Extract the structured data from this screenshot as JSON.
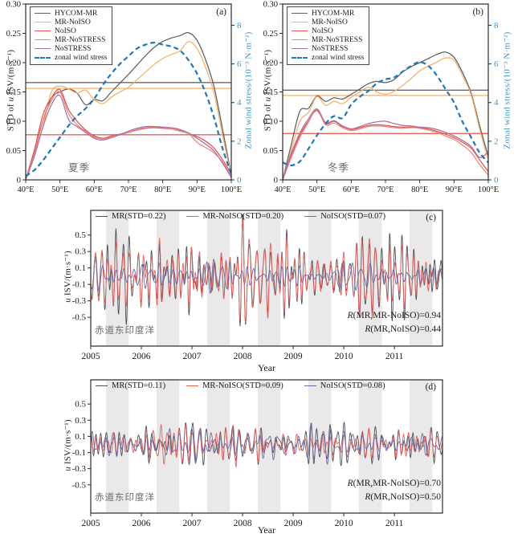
{
  "panels": {
    "a": {
      "tag": "(a)",
      "season": "夏季",
      "ylabel_pre": "STD of ",
      "ylabel_var": "u",
      "ylabel_post": " ISV/(m·s⁻¹)",
      "ylabel_right": "Zonal wind stress/(10⁻³ N·m⁻²)"
    },
    "b": {
      "tag": "(b)",
      "season": "冬季",
      "ylabel_pre": "STD of ",
      "ylabel_var": "u",
      "ylabel_post": " ISV/(m·s⁻¹)",
      "ylabel_right": "Zonal wind stress/(10⁻³ N·m⁻²)"
    },
    "c": {
      "tag": "(c)",
      "region": "赤道东印度洋",
      "ylabel_pre": "",
      "ylabel_var": "u",
      "ylabel_post": " ISV/(m·s⁻¹)",
      "xlabel": "Year"
    },
    "d": {
      "tag": "(d)",
      "region": "赤道东印度洋",
      "ylabel_pre": "",
      "ylabel_var": "u",
      "ylabel_post": " ISV/(m·s⁻¹)",
      "xlabel": "Year"
    }
  },
  "colors": {
    "frame": "#2b2b2b",
    "right_axis_blue": "#3d96c7",
    "wind_blue": "#1f77b4",
    "band_gray": "#eae8e8"
  },
  "chart_data": [
    {
      "id": "a",
      "type": "line",
      "panel": "(a)",
      "season_label": "夏季",
      "x_axis": {
        "label": "",
        "range": [
          40,
          100
        ],
        "ticks": [
          40,
          50,
          60,
          70,
          80,
          90,
          100
        ],
        "tick_labels": [
          "40°E",
          "50°E",
          "60°E",
          "70°E",
          "80°E",
          "90°E",
          "100°E"
        ]
      },
      "y_axis": {
        "label": "STD of u ISV/(m·s⁻¹)",
        "range": [
          0,
          0.3
        ],
        "ticks": [
          0,
          0.05,
          0.1,
          0.15,
          0.2,
          0.25,
          0.3
        ],
        "tick_labels": [
          "0",
          "0.05",
          "0.10",
          "0.15",
          "0.20",
          "0.25",
          "0.30"
        ]
      },
      "y2_axis": {
        "label": "Zonal wind stress/(10⁻³ N·m⁻²)",
        "range": [
          0,
          9.1
        ],
        "ticks": [
          0,
          2,
          4,
          6,
          8
        ],
        "tick_labels": [
          "0",
          "2",
          "4",
          "6",
          "8"
        ]
      },
      "x": [
        40,
        42.5,
        45,
        47.5,
        50,
        52.5,
        55,
        57.5,
        60,
        62.5,
        65,
        67.5,
        70,
        72.5,
        75,
        77.5,
        80,
        82.5,
        85,
        87.5,
        90,
        92.5,
        95,
        97.5,
        100
      ],
      "series": [
        {
          "name": "HYCOM-MR",
          "color": "#5f5f63",
          "values": [
            0.0,
            0.05,
            0.1,
            0.14,
            0.15,
            0.155,
            0.148,
            0.128,
            0.137,
            0.135,
            0.15,
            0.165,
            0.18,
            0.196,
            0.212,
            0.226,
            0.236,
            0.242,
            0.246,
            0.251,
            0.238,
            0.205,
            0.158,
            0.085,
            0.008
          ]
        },
        {
          "name": "MR-NoISO",
          "color": "#f2b06a",
          "values": [
            0.0,
            0.04,
            0.09,
            0.15,
            0.16,
            0.155,
            0.148,
            0.153,
            0.137,
            0.13,
            0.141,
            0.15,
            0.158,
            0.171,
            0.184,
            0.197,
            0.207,
            0.214,
            0.22,
            0.236,
            0.224,
            0.192,
            0.147,
            0.075,
            0.006
          ]
        },
        {
          "name": "NoISO",
          "color": "#e5534a",
          "values": [
            0.0,
            0.05,
            0.11,
            0.14,
            0.154,
            0.12,
            0.1,
            0.085,
            0.075,
            0.071,
            0.075,
            0.078,
            0.081,
            0.085,
            0.088,
            0.089,
            0.088,
            0.087,
            0.084,
            0.079,
            0.074,
            0.066,
            0.054,
            0.034,
            0.01
          ]
        },
        {
          "name": "MR-NoSTRESS",
          "color": "#e8857c",
          "values": [
            0.0,
            0.045,
            0.1,
            0.135,
            0.15,
            0.113,
            0.094,
            0.083,
            0.073,
            0.07,
            0.073,
            0.077,
            0.081,
            0.086,
            0.089,
            0.09,
            0.089,
            0.087,
            0.083,
            0.079,
            0.064,
            0.055,
            0.046,
            0.03,
            0.006
          ]
        },
        {
          "name": "NoSTRESS",
          "color": "#aa6fa4",
          "values": [
            0.0,
            0.04,
            0.09,
            0.128,
            0.144,
            0.103,
            0.091,
            0.081,
            0.071,
            0.068,
            0.072,
            0.077,
            0.083,
            0.088,
            0.091,
            0.091,
            0.09,
            0.089,
            0.086,
            0.08,
            0.071,
            0.061,
            0.049,
            0.028,
            0.004
          ]
        }
      ],
      "wind_series": {
        "name": "zonal wind stress",
        "axis": "y2",
        "color": "#1f77b4",
        "dashed": true,
        "values": [
          0.2,
          0.5,
          1.0,
          1.6,
          2.2,
          2.8,
          3.3,
          3.7,
          4.2,
          4.9,
          5.5,
          6.0,
          6.4,
          6.8,
          7.0,
          7.1,
          7.0,
          6.9,
          6.7,
          6.2,
          5.5,
          4.5,
          3.2,
          1.6,
          0.3
        ]
      },
      "mean_lines": [
        {
          "value": 0.166,
          "color": "#6a6a6a"
        },
        {
          "value": 0.156,
          "color": "#f2b06a"
        },
        {
          "value": 0.077,
          "color": "#e4635a"
        }
      ]
    },
    {
      "id": "b",
      "type": "line",
      "panel": "(b)",
      "season_label": "冬季",
      "x_axis": {
        "label": "",
        "range": [
          40,
          100
        ],
        "ticks": [
          40,
          50,
          60,
          70,
          80,
          90,
          100
        ],
        "tick_labels": [
          "40°E",
          "50°E",
          "60°E",
          "70°E",
          "80°E",
          "90°E",
          "100°E"
        ]
      },
      "y_axis": {
        "label": "STD of u ISV/(m·s⁻¹)",
        "range": [
          0,
          0.3
        ],
        "ticks": [
          0,
          0.05,
          0.1,
          0.15,
          0.2,
          0.25,
          0.3
        ],
        "tick_labels": [
          "0",
          "0.05",
          "0.10",
          "0.15",
          "0.20",
          "0.25",
          "0.30"
        ]
      },
      "y2_axis": {
        "label": "Zonal wind stress/(10⁻³ N·m⁻²)",
        "range": [
          0,
          9.1
        ],
        "ticks": [
          0,
          2,
          4,
          6,
          8
        ],
        "tick_labels": [
          "0",
          "2",
          "4",
          "6",
          "8"
        ]
      },
      "x": [
        40,
        42.5,
        45,
        47.5,
        50,
        52.5,
        55,
        57.5,
        60,
        62.5,
        65,
        67.5,
        70,
        72.5,
        75,
        77.5,
        80,
        82.5,
        85,
        87.5,
        90,
        92.5,
        95,
        97.5,
        100
      ],
      "series": [
        {
          "name": "HYCOM-MR",
          "color": "#5f5f63",
          "values": [
            0.0,
            0.06,
            0.117,
            0.122,
            0.143,
            0.134,
            0.14,
            0.138,
            0.146,
            0.155,
            0.164,
            0.168,
            0.166,
            0.171,
            0.184,
            0.193,
            0.2,
            0.207,
            0.214,
            0.218,
            0.209,
            0.183,
            0.148,
            0.092,
            0.04
          ]
        },
        {
          "name": "MR-NoISO",
          "color": "#f2b06a",
          "values": [
            0.0,
            0.05,
            0.1,
            0.115,
            0.142,
            0.127,
            0.134,
            0.13,
            0.141,
            0.15,
            0.158,
            0.15,
            0.146,
            0.151,
            0.161,
            0.173,
            0.186,
            0.194,
            0.201,
            0.208,
            0.204,
            0.178,
            0.145,
            0.086,
            0.034
          ]
        },
        {
          "name": "NoISO",
          "color": "#e5534a",
          "values": [
            0.0,
            0.04,
            0.076,
            0.1,
            0.118,
            0.096,
            0.1,
            0.091,
            0.086,
            0.089,
            0.093,
            0.094,
            0.093,
            0.091,
            0.09,
            0.09,
            0.089,
            0.087,
            0.083,
            0.078,
            0.072,
            0.064,
            0.054,
            0.034,
            0.014
          ]
        },
        {
          "name": "MR-NoSTRESS",
          "color": "#e8857c",
          "values": [
            0.0,
            0.038,
            0.072,
            0.098,
            0.12,
            0.094,
            0.097,
            0.089,
            0.084,
            0.087,
            0.091,
            0.092,
            0.091,
            0.089,
            0.088,
            0.089,
            0.088,
            0.085,
            0.081,
            0.075,
            0.069,
            0.059,
            0.047,
            0.026,
            0.008
          ]
        },
        {
          "name": "NoSTRESS",
          "color": "#aa6fa4",
          "values": [
            0.0,
            0.045,
            0.08,
            0.104,
            0.121,
            0.098,
            0.101,
            0.092,
            0.087,
            0.091,
            0.096,
            0.099,
            0.1,
            0.096,
            0.093,
            0.092,
            0.09,
            0.089,
            0.086,
            0.081,
            0.075,
            0.067,
            0.057,
            0.038,
            0.048
          ]
        }
      ],
      "wind_series": {
        "name": "zonal wind stress",
        "axis": "y2",
        "color": "#1f77b4",
        "dashed": true,
        "values": [
          0.9,
          0.75,
          0.95,
          1.6,
          2.3,
          2.9,
          3.3,
          3.2,
          3.9,
          4.3,
          4.6,
          5.0,
          5.2,
          5.3,
          5.6,
          5.9,
          6.1,
          5.9,
          5.4,
          4.7,
          4.0,
          3.0,
          2.2,
          1.4,
          0.9
        ]
      },
      "mean_lines": [
        {
          "value": 0.153,
          "color": "#6a6a6a"
        },
        {
          "value": 0.144,
          "color": "#f2b06a"
        },
        {
          "value": 0.079,
          "color": "#e4635a"
        }
      ]
    },
    {
      "id": "c",
      "type": "line",
      "panel": "(c)",
      "region_label": "赤道东印度洋",
      "x_axis": {
        "label": "Year",
        "range": [
          2005,
          2011.95
        ],
        "ticks": [
          2005,
          2006,
          2007,
          2008,
          2009,
          2010,
          2011
        ],
        "tick_labels": [
          "2005",
          "2006",
          "2007",
          "2008",
          "2009",
          "2010",
          "2011"
        ]
      },
      "y_axis": {
        "label": "u ISV/(m·s⁻¹)",
        "range": [
          -0.85,
          0.8
        ],
        "ticks": [
          0.5,
          0.3,
          0.1,
          -0.1,
          -0.3,
          -0.5
        ],
        "tick_labels": [
          "0.5",
          "0.3",
          "0.1",
          "-0.1",
          "-0.3",
          "-0.5"
        ]
      },
      "shaded_bands": {
        "color": "#eae8e8",
        "year_start_frac": 0.3,
        "year_end_frac": 0.75,
        "years": [
          2005,
          2006,
          2007,
          2008,
          2009,
          2010,
          2011
        ]
      },
      "series": [
        {
          "name": "MR",
          "legend": "MR(STD=0.22)",
          "std": 0.22,
          "color": "#4e4e58",
          "seed": 101
        },
        {
          "name": "MR-NoISO",
          "legend": "MR-NoISO(STD=0.20)",
          "std": 0.2,
          "color": "#e0615a",
          "seed": 102,
          "corr_with_MR": 0.94
        },
        {
          "name": "NoISO",
          "legend": "NoISO(STD=0.07)",
          "std": 0.07,
          "color": "#6e6aa6",
          "seed": 103,
          "corr_with_MR": 0.44,
          "smooth": true
        }
      ],
      "annotations": [
        {
          "r": "R",
          "rest": "(MR,MR-NoISO)=0.94"
        },
        {
          "r": "R",
          "rest": "(MR,NoISO)=0.44"
        }
      ]
    },
    {
      "id": "d",
      "type": "line",
      "panel": "(d)",
      "region_label": "赤道东印度洋",
      "x_axis": {
        "label": "Year",
        "range": [
          2005,
          2011.95
        ],
        "ticks": [
          2005,
          2006,
          2007,
          2008,
          2009,
          2010,
          2011
        ],
        "tick_labels": [
          "2005",
          "2006",
          "2007",
          "2008",
          "2009",
          "2010",
          "2011"
        ]
      },
      "y_axis": {
        "label": "u ISV/(m·s⁻¹)",
        "range": [
          -0.85,
          0.8
        ],
        "ticks": [
          0.5,
          0.3,
          0.1,
          -0.1,
          -0.3,
          -0.5
        ],
        "tick_labels": [
          "0.5",
          "0.3",
          "0.1",
          "-0.1",
          "-0.3",
          "-0.5"
        ]
      },
      "shaded_bands": {
        "color": "#eae8e8",
        "year_start_frac": 0.3,
        "year_end_frac": 0.75,
        "years": [
          2005,
          2006,
          2007,
          2008,
          2009,
          2010,
          2011
        ]
      },
      "series": [
        {
          "name": "MR",
          "legend": "MR(STD=0.11)",
          "std": 0.11,
          "color": "#4e4e58",
          "seed": 201
        },
        {
          "name": "MR-NoISO",
          "legend": "MR-NoISO(STD=0.09)",
          "std": 0.09,
          "color": "#e0615a",
          "seed": 202,
          "corr_with_MR": 0.7
        },
        {
          "name": "NoISO",
          "legend": "NoISO(STD=0.08)",
          "std": 0.08,
          "color": "#6e6aa6",
          "seed": 203,
          "corr_with_MR": 0.5,
          "smooth": true
        }
      ],
      "annotations": [
        {
          "r": "R",
          "rest": "(MR,MR-NoISO)=0.70"
        },
        {
          "r": "R",
          "rest": "(MR,NoISO)=0.50"
        }
      ]
    }
  ]
}
